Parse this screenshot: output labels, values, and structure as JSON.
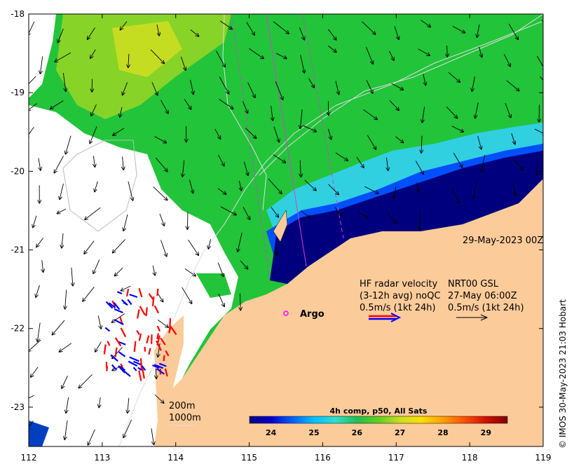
{
  "map": {
    "lon_ticks": [
      "112",
      "113",
      "114",
      "115",
      "116",
      "117",
      "118",
      "119"
    ],
    "lat_ticks": [
      "-18",
      "-19",
      "-20",
      "-21",
      "-22",
      "-23"
    ],
    "lon_range": [
      112,
      119
    ],
    "lat_range": [
      -23.5,
      -18
    ],
    "date_label": "29-May-2023 00Z",
    "argo_label": "Argo",
    "copyright": "© IMOS 30-May-2023 21:03 Hobart"
  },
  "legend": {
    "hf_title": "HF radar velocity",
    "hf_line2": "(3-12h avg) noQC",
    "hf_line3": "0.5m/s (1kt 24h)",
    "nrt_title": "NRT00 GSL",
    "nrt_line2": "27-May 06:00Z",
    "nrt_line3": "0.5m/s (1kt 24h)"
  },
  "depth_labels": {
    "d200": "200m",
    "d1000": "1000m"
  },
  "colorbar": {
    "title": "4h comp, p50, All Sats",
    "ticks": [
      "24",
      "25",
      "26",
      "27",
      "28",
      "29"
    ],
    "range": [
      23.5,
      29.5
    ],
    "colors": [
      "#00007f",
      "#0000d0",
      "#0060ff",
      "#00c0ff",
      "#30e0d0",
      "#20c050",
      "#60d020",
      "#c8e020",
      "#ffe000",
      "#ffa000",
      "#ff5000",
      "#d01000",
      "#7f0000"
    ]
  }
}
